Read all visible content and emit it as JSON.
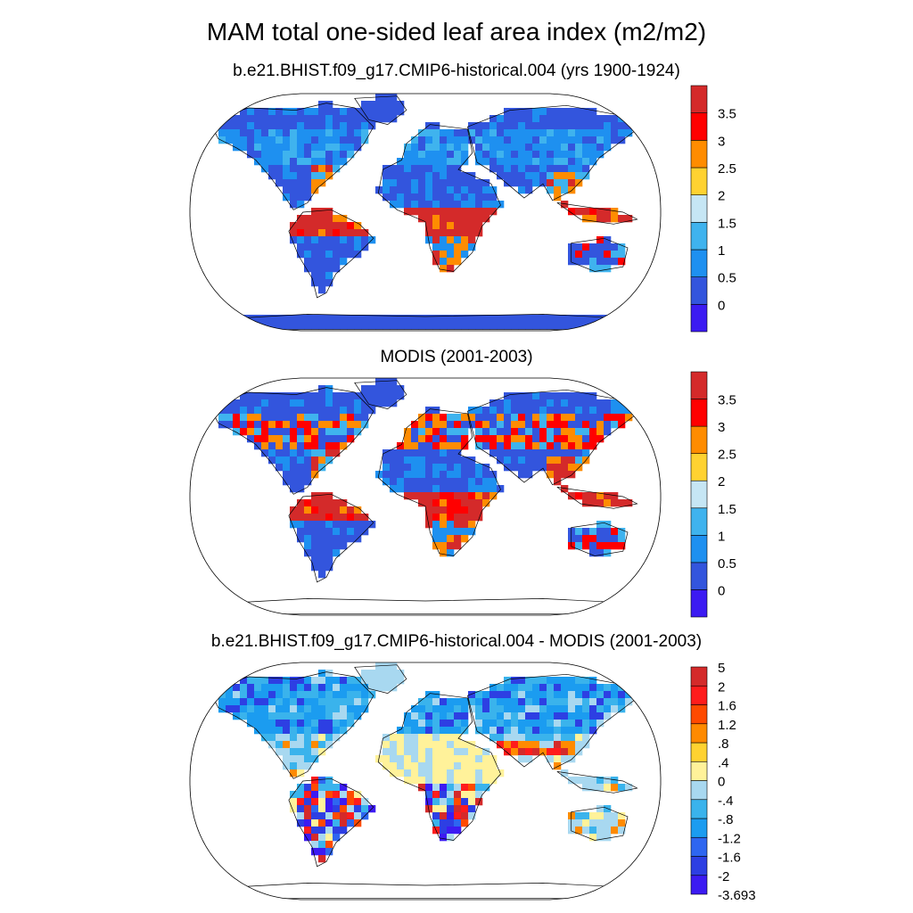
{
  "title": "MAM total one-sided leaf area index (m2/m2)",
  "colors": {
    "lai": [
      "#3c1bf2",
      "#3355dd",
      "#1e90f0",
      "#3fb3ee",
      "#c6e6f4",
      "#ffd231",
      "#ff8c00",
      "#ff0000",
      "#d42a2a"
    ],
    "diff": [
      "#3c1bf2",
      "#2d3fe3",
      "#2e66f0",
      "#1b9cf0",
      "#3ab3ec",
      "#a8d8f0",
      "#fff29a",
      "#ffd231",
      "#ff8a00",
      "#ff4a00",
      "#ff1c1c",
      "#d42a2a"
    ],
    "land_outline": "#000000",
    "ocean": "#ffffff"
  },
  "panels": [
    {
      "id": "model",
      "title": "b.e21.BHIST.f09_g17.CMIP6-historical.004 (yrs 1900-1924)",
      "colorbar": {
        "labels": [
          "3.5",
          "3",
          "2.5",
          "2",
          "1.5",
          "1",
          "0.5",
          "0"
        ]
      }
    },
    {
      "id": "obs",
      "title": "MODIS (2001-2003)",
      "colorbar": {
        "labels": [
          "3.5",
          "3",
          "2.5",
          "2",
          "1.5",
          "1",
          "0.5",
          "0"
        ]
      }
    },
    {
      "id": "diff",
      "title": "b.e21.BHIST.f09_g17.CMIP6-historical.004 - MODIS (2001-2003)",
      "colorbar": {
        "labels": [
          "5",
          "2",
          "1.6",
          "1.2",
          ".8",
          ".4",
          "0",
          "-.4",
          "-.8",
          "-1.2",
          "-1.6",
          "-2",
          "-3.693"
        ]
      }
    }
  ]
}
